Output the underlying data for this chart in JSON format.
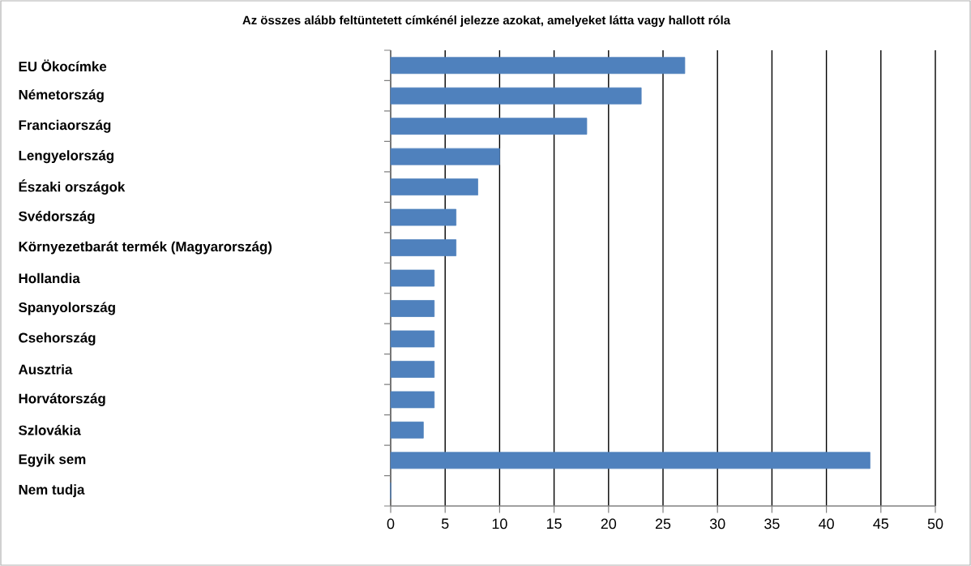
{
  "chart_data": {
    "type": "bar",
    "orientation": "horizontal",
    "title": "Az összes alább feltüntetett címkénél jelezze azokat, amelyeket látta vagy hallott róla",
    "categories": [
      "EU Ökocímke",
      "Németország",
      "Franciaország",
      "Lengyelország",
      "Északi országok",
      "Svédország",
      "Környezetbarát termék (Magyarország)",
      "Hollandia",
      "Spanyolország",
      "Csehország",
      "Ausztria",
      "Horvátország",
      "Szlovákia",
      "Egyik sem",
      "Nem tudja"
    ],
    "values": [
      27,
      23,
      18,
      10,
      8,
      6,
      6,
      4,
      4,
      4,
      4,
      4,
      3,
      44,
      0
    ],
    "color": "#4f81bd",
    "xlim": [
      0,
      50
    ],
    "xticks": [
      0,
      5,
      10,
      15,
      20,
      25,
      30,
      35,
      40,
      45,
      50
    ],
    "grid": "x"
  }
}
